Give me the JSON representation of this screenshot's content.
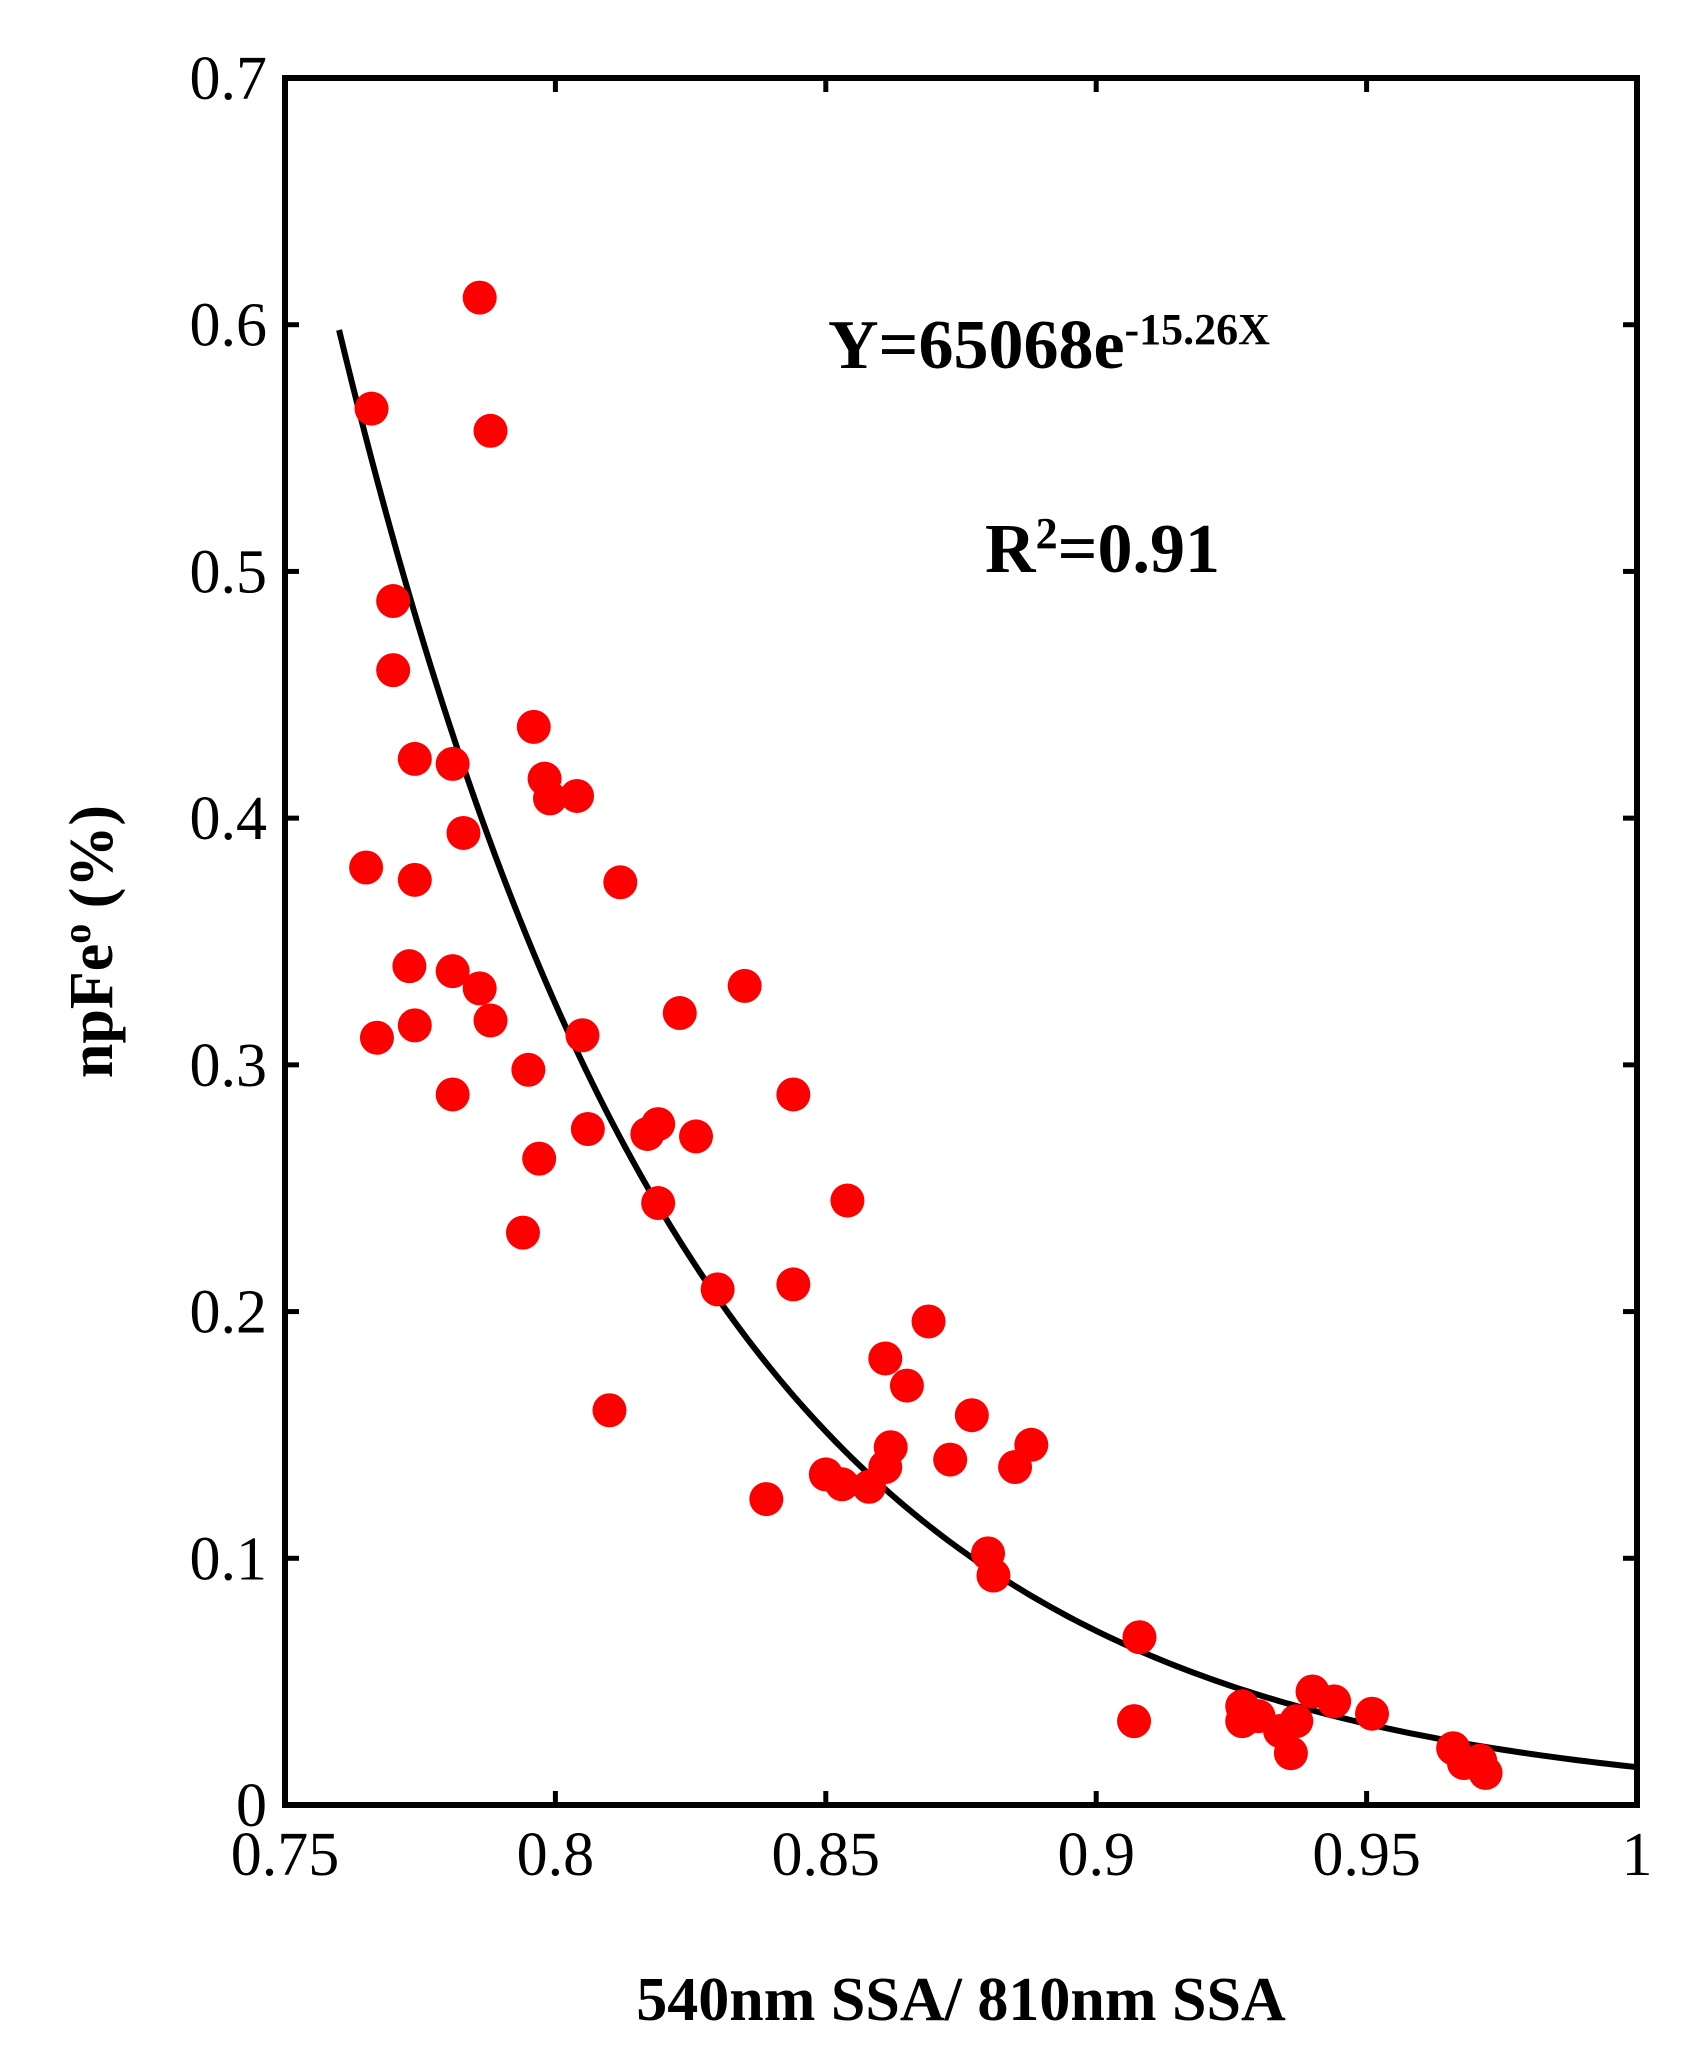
{
  "chart_data": {
    "type": "scatter",
    "title": "",
    "xlabel": "540nm SSA/ 810nm SSA",
    "ylabel_main": "npFe",
    "ylabel_sup": "o",
    "ylabel_unit": "(%)",
    "xlim": [
      0.75,
      1.0
    ],
    "ylim": [
      0,
      0.7
    ],
    "xticks": [
      0.75,
      0.8,
      0.85,
      0.9,
      0.95,
      1.0
    ],
    "xtick_labels": [
      "0.75",
      "0.8",
      "0.85",
      "0.9",
      "0.95",
      "1"
    ],
    "yticks": [
      0,
      0.1,
      0.2,
      0.3,
      0.4,
      0.5,
      0.6,
      0.7
    ],
    "ytick_labels": [
      "0",
      "0.1",
      "0.2",
      "0.3",
      "0.4",
      "0.5",
      "0.6",
      "0.7"
    ],
    "grid": false,
    "marker_color": "#ff0000",
    "curve_color": "#000000",
    "series": [
      {
        "name": "samples",
        "points": [
          [
            0.766,
            0.566
          ],
          [
            0.77,
            0.488
          ],
          [
            0.77,
            0.46
          ],
          [
            0.765,
            0.38
          ],
          [
            0.767,
            0.311
          ],
          [
            0.774,
            0.424
          ],
          [
            0.774,
            0.375
          ],
          [
            0.773,
            0.34
          ],
          [
            0.774,
            0.316
          ],
          [
            0.781,
            0.422
          ],
          [
            0.783,
            0.394
          ],
          [
            0.781,
            0.338
          ],
          [
            0.786,
            0.331
          ],
          [
            0.781,
            0.288
          ],
          [
            0.788,
            0.318
          ],
          [
            0.786,
            0.611
          ],
          [
            0.788,
            0.557
          ],
          [
            0.796,
            0.437
          ],
          [
            0.798,
            0.416
          ],
          [
            0.799,
            0.408
          ],
          [
            0.804,
            0.409
          ],
          [
            0.795,
            0.298
          ],
          [
            0.805,
            0.312
          ],
          [
            0.797,
            0.262
          ],
          [
            0.794,
            0.232
          ],
          [
            0.806,
            0.274
          ],
          [
            0.81,
            0.16
          ],
          [
            0.812,
            0.374
          ],
          [
            0.817,
            0.272
          ],
          [
            0.819,
            0.276
          ],
          [
            0.819,
            0.244
          ],
          [
            0.823,
            0.321
          ],
          [
            0.826,
            0.271
          ],
          [
            0.83,
            0.209
          ],
          [
            0.835,
            0.332
          ],
          [
            0.839,
            0.124
          ],
          [
            0.844,
            0.288
          ],
          [
            0.844,
            0.211
          ],
          [
            0.85,
            0.134
          ],
          [
            0.853,
            0.13
          ],
          [
            0.854,
            0.245
          ],
          [
            0.858,
            0.129
          ],
          [
            0.861,
            0.181
          ],
          [
            0.861,
            0.137
          ],
          [
            0.862,
            0.145
          ],
          [
            0.865,
            0.17
          ],
          [
            0.869,
            0.196
          ],
          [
            0.873,
            0.14
          ],
          [
            0.877,
            0.158
          ],
          [
            0.88,
            0.102
          ],
          [
            0.881,
            0.093
          ],
          [
            0.885,
            0.137
          ],
          [
            0.888,
            0.146
          ],
          [
            0.908,
            0.068
          ],
          [
            0.907,
            0.034
          ],
          [
            0.927,
            0.04
          ],
          [
            0.927,
            0.034
          ],
          [
            0.93,
            0.036
          ],
          [
            0.934,
            0.03
          ],
          [
            0.936,
            0.021
          ],
          [
            0.937,
            0.034
          ],
          [
            0.94,
            0.046
          ],
          [
            0.944,
            0.042
          ],
          [
            0.951,
            0.037
          ],
          [
            0.966,
            0.023
          ],
          [
            0.968,
            0.017
          ],
          [
            0.971,
            0.018
          ],
          [
            0.972,
            0.013
          ]
        ]
      },
      {
        "name": "fit",
        "type": "line",
        "equation": "Y=65068*exp(-15.26*X)",
        "coef_a": 65068,
        "coef_b": -15.26,
        "x_start": 0.76,
        "x_end": 1.0
      }
    ],
    "annotations": {
      "equation_main": "Y=65068e",
      "equation_exp": "-15.26X",
      "r2_main": "R",
      "r2_exp": "2",
      "r2_value": "=0.91"
    }
  }
}
